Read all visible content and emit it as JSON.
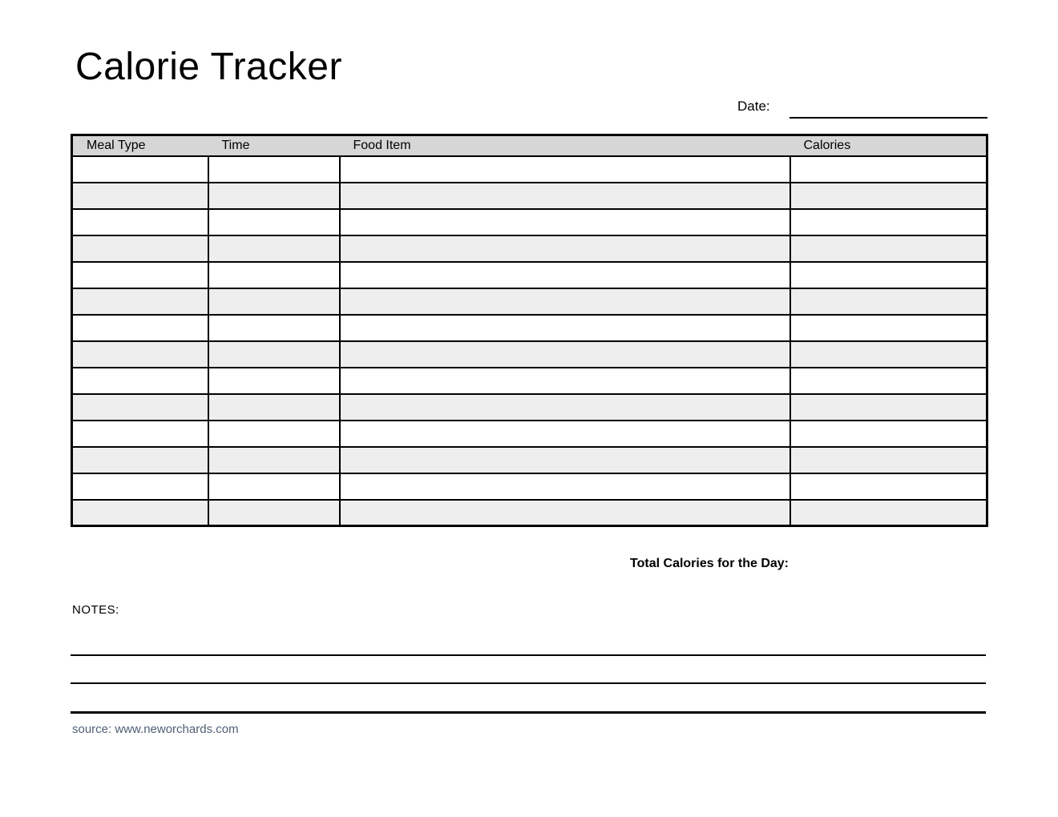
{
  "document": {
    "title": "Calorie Tracker",
    "date": {
      "label": "Date:",
      "value": ""
    },
    "total_calories": {
      "label": "Total Calories for the Day:",
      "value": ""
    },
    "notes": {
      "label": "NOTES:",
      "line_count": 3,
      "value": ""
    },
    "source": "source: www.neworchards.com"
  },
  "table": {
    "headers": [
      "Meal Type",
      "Time",
      "Food Item",
      "Calories"
    ],
    "rows": [
      [
        "",
        "",
        "",
        ""
      ],
      [
        "",
        "",
        "",
        ""
      ],
      [
        "",
        "",
        "",
        ""
      ],
      [
        "",
        "",
        "",
        ""
      ],
      [
        "",
        "",
        "",
        ""
      ],
      [
        "",
        "",
        "",
        ""
      ],
      [
        "",
        "",
        "",
        ""
      ],
      [
        "",
        "",
        "",
        ""
      ],
      [
        "",
        "",
        "",
        ""
      ],
      [
        "",
        "",
        "",
        ""
      ],
      [
        "",
        "",
        "",
        ""
      ],
      [
        "",
        "",
        "",
        ""
      ],
      [
        "",
        "",
        "",
        ""
      ],
      [
        "",
        "",
        "",
        ""
      ]
    ]
  },
  "colors": {
    "page_bg": "#ffffff",
    "header_bg": "#d6d6d6",
    "alt_row_bg": "#eeeeee",
    "border": "#000000",
    "source_text": "#4f5f75"
  }
}
